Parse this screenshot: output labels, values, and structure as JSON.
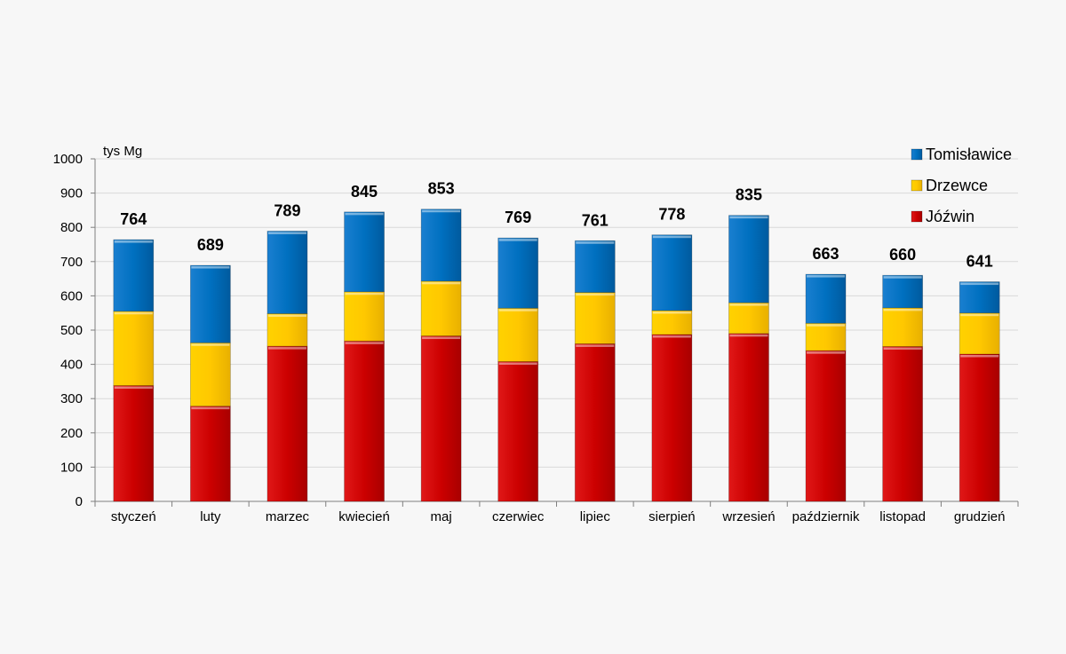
{
  "chart_data": {
    "type": "bar",
    "stacked": true,
    "ylabel": "tys Mg",
    "ylim": [
      0,
      1000
    ],
    "yticks": [
      0,
      100,
      200,
      300,
      400,
      500,
      600,
      700,
      800,
      900,
      1000
    ],
    "grid": true,
    "legend_position": "top-right",
    "categories": [
      "styczeń",
      "luty",
      "marzec",
      "kwiecień",
      "maj",
      "czerwiec",
      "lipiec",
      "sierpień",
      "wrzesień",
      "październik",
      "listopad",
      "grudzień"
    ],
    "series": [
      {
        "name": "Jóźwin",
        "color": "#cc0000",
        "values": [
          338,
          278,
          453,
          468,
          483,
          408,
          460,
          487,
          490,
          440,
          452,
          430
        ]
      },
      {
        "name": "Drzewce",
        "color": "#ffcc00",
        "values": [
          217,
          185,
          95,
          144,
          160,
          156,
          150,
          70,
          90,
          80,
          113,
          120
        ]
      },
      {
        "name": "Tomisławice",
        "color": "#0070c0",
        "values": [
          209,
          226,
          241,
          233,
          210,
          205,
          151,
          221,
          255,
          143,
          95,
          91
        ]
      }
    ],
    "totals": [
      764,
      689,
      789,
      845,
      853,
      769,
      761,
      778,
      835,
      663,
      660,
      641
    ],
    "legend_order": [
      "Tomisławice",
      "Drzewce",
      "Jóźwin"
    ]
  }
}
